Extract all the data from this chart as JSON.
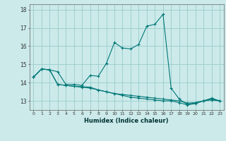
{
  "xlabel": "Humidex (Indice chaleur)",
  "bg_color": "#cceaea",
  "grid_color": "#99cccc",
  "line_color": "#007777",
  "x_values": [
    0,
    1,
    2,
    3,
    4,
    5,
    6,
    7,
    8,
    9,
    10,
    11,
    12,
    13,
    14,
    15,
    16,
    17,
    18,
    19,
    20,
    21,
    22,
    23
  ],
  "series1": [
    14.3,
    14.75,
    14.7,
    14.6,
    13.9,
    13.9,
    13.85,
    14.4,
    14.35,
    15.05,
    16.2,
    15.9,
    15.85,
    16.1,
    17.1,
    17.2,
    17.75,
    13.7,
    13.1,
    12.8,
    12.9,
    13.0,
    13.15,
    13.0
  ],
  "series2": [
    14.3,
    14.75,
    14.7,
    13.9,
    13.85,
    13.8,
    13.78,
    13.75,
    13.6,
    13.5,
    13.4,
    13.3,
    13.2,
    13.15,
    13.1,
    13.05,
    13.0,
    13.0,
    12.9,
    12.78,
    12.85,
    13.0,
    13.1,
    13.0
  ],
  "series3": [
    14.3,
    14.75,
    14.7,
    13.9,
    13.85,
    13.8,
    13.75,
    13.7,
    13.6,
    13.5,
    13.4,
    13.35,
    13.3,
    13.25,
    13.2,
    13.15,
    13.1,
    13.05,
    13.0,
    12.88,
    12.9,
    13.0,
    13.05,
    13.0
  ],
  "ylim": [
    12.5,
    18.3
  ],
  "yticks": [
    13,
    14,
    15,
    16,
    17,
    18
  ],
  "xticks": [
    0,
    1,
    2,
    3,
    4,
    5,
    6,
    7,
    8,
    9,
    10,
    11,
    12,
    13,
    14,
    15,
    16,
    17,
    18,
    19,
    20,
    21,
    22,
    23
  ]
}
